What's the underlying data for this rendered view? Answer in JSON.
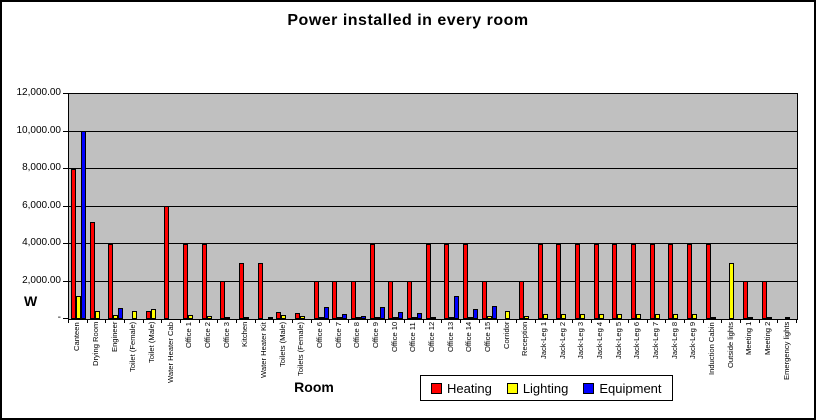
{
  "chart_data": {
    "type": "bar",
    "title": "Power installed in every room",
    "xlabel": "Room",
    "ylabel": "W",
    "ylim": [
      0,
      12000
    ],
    "ytick_step": 2000,
    "ytick_labels": [
      "-",
      "2,000.00",
      "4,000.00",
      "6,000.00",
      "8,000.00",
      "10,000.00",
      "12,000.00"
    ],
    "grid": true,
    "legend_position": "bottom",
    "plot_bg": "#c0c0c0",
    "categories": [
      "Canteen",
      "Drying Room",
      "Engineer",
      "Toilet (Female)",
      "Toilet (Male)",
      "Water Heater Cab",
      "Office 1",
      "Office 2",
      "Office 3",
      "Kitchen",
      "Water Heater Kit",
      "Toilets (Male)",
      "Toilets (Female)",
      "Office 6",
      "Office 7",
      "Office 8",
      "Office 9",
      "Office 10",
      "Office 11",
      "Office 12",
      "Office 13",
      "Office 14",
      "Office 15",
      "Corridor",
      "Reception",
      "Jack-Leg 1",
      "Jack-Leg 2",
      "Jack-Leg 3",
      "Jack-Leg 4",
      "Jack-Leg 5",
      "Jack-Leg 6",
      "Jack-Leg 7",
      "Jack-Leg 8",
      "Jack-Leg 9",
      "Induction Cabin",
      "Outside lights",
      "Meeting 1",
      "Meeting 2",
      "Emergency lights"
    ],
    "series": [
      {
        "name": "Heating",
        "color": "#ff0000",
        "values": [
          8000,
          5150,
          4000,
          0,
          400,
          6000,
          4000,
          4000,
          2000,
          3000,
          3000,
          350,
          300,
          2000,
          2000,
          2000,
          4000,
          2000,
          2000,
          4000,
          4000,
          4000,
          2000,
          0,
          2000,
          4000,
          4000,
          4000,
          4000,
          4000,
          4000,
          4000,
          4000,
          4000,
          4000,
          0,
          2000,
          2000,
          0
        ]
      },
      {
        "name": "Lighting",
        "color": "#ffff00",
        "values": [
          1200,
          400,
          200,
          400,
          550,
          0,
          200,
          150,
          100,
          100,
          0,
          200,
          150,
          100,
          100,
          100,
          100,
          100,
          100,
          100,
          100,
          100,
          150,
          400,
          150,
          250,
          250,
          250,
          250,
          250,
          250,
          250,
          250,
          250,
          100,
          3000,
          100,
          100,
          100
        ]
      },
      {
        "name": "Equipment",
        "color": "#0000ff",
        "values": [
          10000,
          0,
          600,
          0,
          0,
          0,
          0,
          0,
          0,
          0,
          100,
          0,
          0,
          650,
          270,
          180,
          650,
          380,
          320,
          0,
          1250,
          540,
          700,
          0,
          0,
          0,
          0,
          0,
          0,
          0,
          0,
          0,
          0,
          0,
          0,
          0,
          0,
          0,
          0
        ]
      }
    ]
  }
}
